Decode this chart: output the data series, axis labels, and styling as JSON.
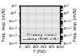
{
  "title": "",
  "xlabel": "f (Hz)",
  "ylabel": "Freq. resp. [m/N]",
  "ylabel_right": "Freq. resp. [m/N]",
  "xlim": [
    0,
    1000
  ],
  "ylim": [
    0.0001,
    10.0
  ],
  "grid_color": "#bbbbbb",
  "bg_color": "#eeeeee",
  "line_black_label": "damp (ROM, e.M.)",
  "line_cyan_label": "FI (damp.+imm.)",
  "line_black_color": "#111111",
  "line_cyan_color": "#55ccee",
  "figsize": [
    1.0,
    0.7
  ],
  "dpi": 100,
  "legend_fontsize": 3.2,
  "xlabel_fontsize": 4.0,
  "ylabel_fontsize": 3.5,
  "tick_fontsize": 3.2
}
